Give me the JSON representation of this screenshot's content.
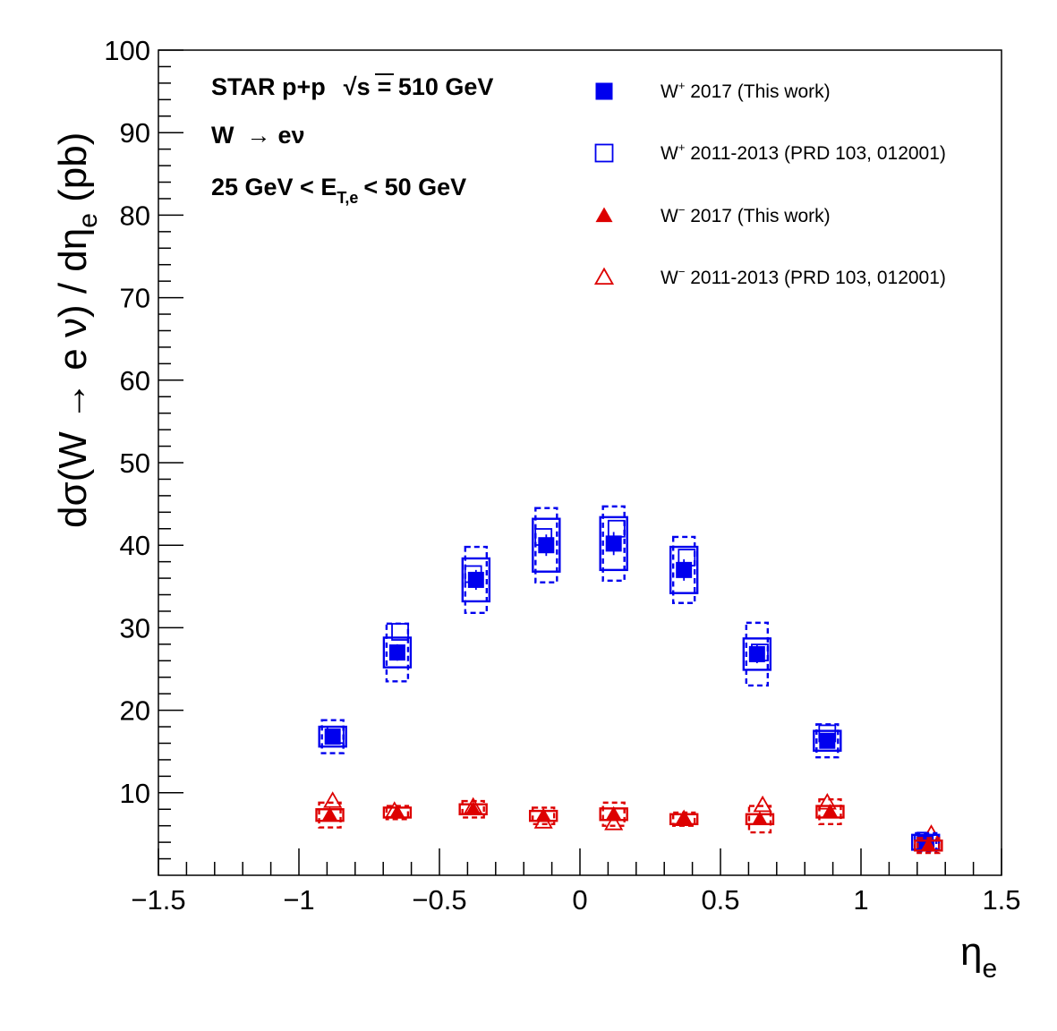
{
  "chart_data": {
    "type": "scatter",
    "title": "",
    "xlabel": "η_e",
    "ylabel": "dσ(W → e ν) / dη_e (pb)",
    "xlim": [
      -1.5,
      1.5
    ],
    "ylim": [
      0,
      100
    ],
    "x_ticks": [
      "−1.5",
      "−1",
      "−0.5",
      "0",
      "0.5",
      "1",
      "1.5"
    ],
    "x_tick_values": [
      -1.5,
      -1,
      -0.5,
      0,
      0.5,
      1,
      1.5
    ],
    "y_ticks": [
      "10",
      "20",
      "30",
      "40",
      "50",
      "60",
      "70",
      "80",
      "90",
      "100"
    ],
    "y_tick_values": [
      10,
      20,
      30,
      40,
      50,
      60,
      70,
      80,
      90,
      100
    ],
    "grid": false,
    "legend_position": "top-right",
    "annotations": {
      "line1_prefix": "STAR p+p",
      "line1_sqrt": "√s",
      "line1_suffix": "= 510 GeV",
      "line2_w": "W",
      "line2_arrow": "→",
      "line2_ev": "eν",
      "line3_pre": "25 GeV < E",
      "line3_sub": "T,e",
      "line3_post": "< 50 GeV"
    },
    "series": [
      {
        "name": "W⁺ 2017 (This work)",
        "legend_base": "W",
        "legend_sup": "+",
        "legend_rest": " 2017 (This work)",
        "marker": "square-filled",
        "color": "#0000ee",
        "x": [
          -0.88,
          -0.65,
          -0.37,
          -0.12,
          0.12,
          0.37,
          0.63,
          0.88,
          1.23
        ],
        "y": [
          16.8,
          27.0,
          35.8,
          40.0,
          40.2,
          37.0,
          26.8,
          16.3,
          4.0
        ],
        "stat": [
          0.8,
          1.0,
          1.2,
          1.3,
          1.4,
          1.3,
          1.1,
          0.8,
          0.4
        ],
        "sys_box": [
          1.2,
          1.8,
          2.6,
          3.2,
          3.2,
          2.8,
          1.9,
          1.2,
          0.9
        ],
        "sys_box_total": [
          2.0,
          3.5,
          4.0,
          4.5,
          4.5,
          4.0,
          3.8,
          2.0,
          1.1
        ]
      },
      {
        "name": "W⁺ 2011-2013 (PRD 103, 012001)",
        "legend_base": "W",
        "legend_sup": "+",
        "legend_rest": " 2011-2013 (PRD 103, 012001)",
        "marker": "square-open",
        "color": "#0000ee",
        "x": [
          -0.87,
          -0.64,
          -0.38,
          -0.13,
          0.13,
          0.38,
          0.64,
          0.88,
          1.23
        ],
        "y": [
          17.0,
          29.5,
          36.5,
          41.0,
          42.0,
          38.5,
          27.0,
          17.2,
          4.2
        ]
      },
      {
        "name": "W⁻ 2017 (This work)",
        "legend_base": "W",
        "legend_sup": "−",
        "legend_rest": " 2017 (This work)",
        "marker": "triangle-filled",
        "color": "#dd0000",
        "x": [
          -0.89,
          -0.65,
          -0.38,
          -0.13,
          0.12,
          0.37,
          0.64,
          0.89,
          1.24
        ],
        "y": [
          7.3,
          7.6,
          8.0,
          7.2,
          7.4,
          6.8,
          6.8,
          7.7,
          3.6
        ],
        "stat": [
          0.6,
          0.6,
          0.6,
          0.6,
          0.6,
          0.5,
          0.6,
          0.6,
          0.4
        ],
        "sys_box": [
          0.7,
          0.6,
          0.6,
          0.6,
          0.7,
          0.6,
          0.6,
          0.7,
          0.6
        ],
        "sys_box_total": [
          1.5,
          0.8,
          1.0,
          1.0,
          1.4,
          0.8,
          1.6,
          1.5,
          0.9
        ]
      },
      {
        "name": "W⁻ 2011-2013 (PRD 103, 012001)",
        "legend_base": "W",
        "legend_sup": "−",
        "legend_rest": " 2011-2013 (PRD 103, 012001)",
        "marker": "triangle-open",
        "color": "#dd0000",
        "x": [
          -0.88,
          -0.66,
          -0.38,
          -0.13,
          0.12,
          0.37,
          0.65,
          0.88,
          1.25
        ],
        "y": [
          9.0,
          7.8,
          8.3,
          6.5,
          6.3,
          6.8,
          8.5,
          8.8,
          5.0
        ]
      }
    ]
  }
}
